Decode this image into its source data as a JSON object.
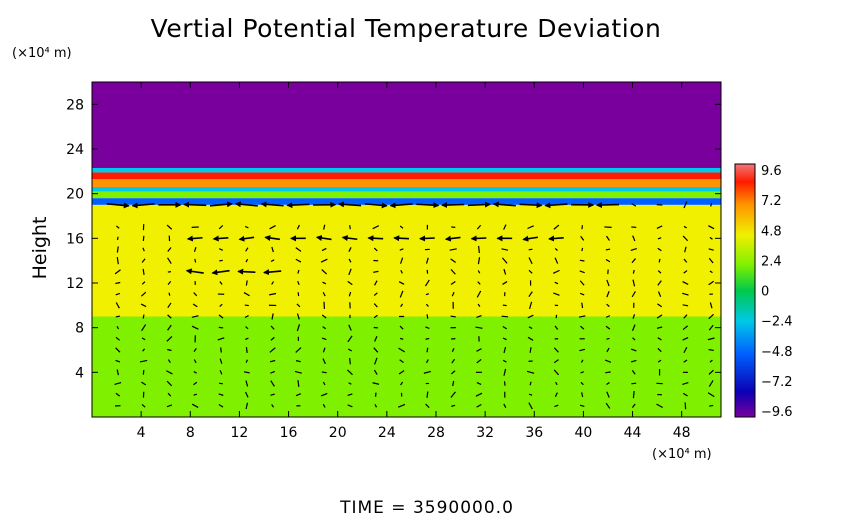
{
  "title": "Vertial Potential Temperature Deviation",
  "y_unit": "(×10⁴ m)",
  "x_unit": "(×10⁴ m)",
  "ylabel": "Height",
  "footer": "TIME  =  3590000.0",
  "chart_data": {
    "type": "heatmap",
    "title": "Vertial Potential Temperature Deviation",
    "xlabel": "",
    "ylabel": "Height",
    "xlim": [
      0,
      51.2
    ],
    "ylim": [
      0,
      30
    ],
    "x_ticks": [
      4,
      8,
      12,
      16,
      20,
      24,
      28,
      32,
      36,
      40,
      44,
      48
    ],
    "y_ticks": [
      4,
      8,
      12,
      16,
      20,
      24,
      28
    ],
    "colorbar": {
      "levels": [
        9.6,
        7.2,
        4.8,
        2.4,
        0,
        -2.4,
        -4.8,
        -7.2,
        -9.6
      ],
      "range": [
        -9.6,
        9.6
      ]
    },
    "field_bands": [
      {
        "y_from": 0,
        "y_to": 9,
        "value": 1.2
      },
      {
        "y_from": 9,
        "y_to": 12,
        "value": 2.0
      },
      {
        "y_from": 12,
        "y_to": 15,
        "value": 2.6
      },
      {
        "y_from": 15,
        "y_to": 19,
        "value": 3.3
      },
      {
        "y_from": 19,
        "y_to": 19.6,
        "value": -4.0
      },
      {
        "y_from": 19.6,
        "y_to": 20.2,
        "value": 1.5
      },
      {
        "y_from": 20.2,
        "y_to": 20.6,
        "value": -3.5
      },
      {
        "y_from": 20.6,
        "y_to": 21.3,
        "value": 5.5
      },
      {
        "y_from": 21.3,
        "y_to": 21.9,
        "value": 7.0
      },
      {
        "y_from": 21.9,
        "y_to": 22.3,
        "value": -3.0
      },
      {
        "y_from": 22.3,
        "y_to": 30,
        "value": -9.6
      }
    ],
    "vector_field": {
      "x_spacing": 2.1,
      "y_rows": [
        1,
        2,
        3,
        4,
        5,
        6,
        7,
        8,
        9,
        10,
        11,
        12,
        13,
        14,
        15,
        16,
        17,
        19
      ],
      "strong_flow": [
        {
          "y": 19,
          "x_from": 2,
          "x_to": 43,
          "direction": "alternating",
          "magnitude": 1.8
        },
        {
          "y": 16.2,
          "x_from": 8,
          "x_to": 38,
          "direction": "west",
          "magnitude": 1.2
        },
        {
          "y": 13,
          "x_from": 7,
          "x_to": 16,
          "direction": "west",
          "magnitude": 1.4
        }
      ]
    }
  },
  "colors": {
    "colormap": [
      "#7a009e",
      "#0a00b4",
      "#0060ff",
      "#00c8e6",
      "#00c94a",
      "#7ff000",
      "#f0f000",
      "#ff9400",
      "#ff1a00",
      "#f07878"
    ],
    "arrow": "#000000",
    "frame": "#000000"
  }
}
